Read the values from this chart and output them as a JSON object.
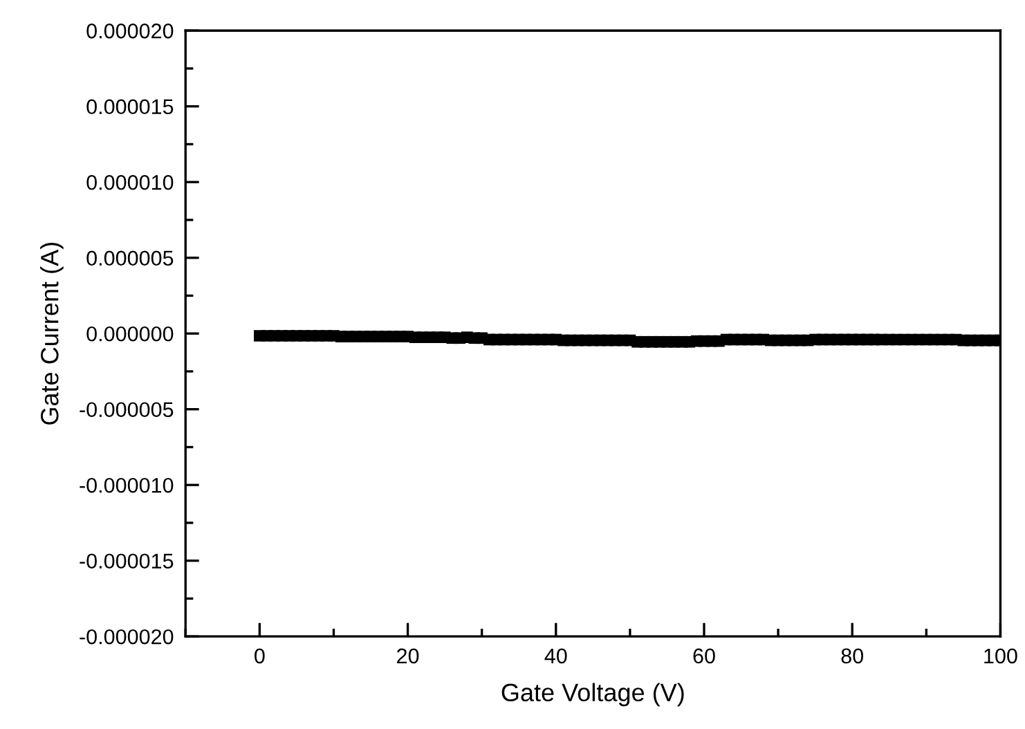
{
  "chart_data": {
    "type": "scatter",
    "xlabel": "Gate Voltage (V)",
    "ylabel": "Gate Current (A)",
    "marker": "square",
    "xlim": [
      -10,
      100
    ],
    "xticks": [
      0,
      20,
      40,
      60,
      80,
      100
    ],
    "ylim": [
      -2e-05,
      2e-05
    ],
    "yticks": [
      {
        "value": -2e-05,
        "label": "-0.000020"
      },
      {
        "value": -1.5e-05,
        "label": "-0.000015"
      },
      {
        "value": -1e-05,
        "label": "-0.000010"
      },
      {
        "value": -5e-06,
        "label": "-0.000005"
      },
      {
        "value": 0,
        "label": "0.000000"
      },
      {
        "value": 5e-06,
        "label": "0.000005"
      },
      {
        "value": 1e-05,
        "label": "0.000010"
      },
      {
        "value": 1.5e-05,
        "label": "0.000015"
      },
      {
        "value": 2e-05,
        "label": "0.000020"
      }
    ],
    "series": [
      {
        "color": "#000000",
        "x": [
          0,
          1,
          2,
          3,
          4,
          5,
          6,
          7,
          8,
          9,
          10,
          11,
          12,
          13,
          14,
          15,
          16,
          17,
          18,
          19,
          20,
          21,
          22,
          23,
          24,
          25,
          26,
          27,
          28,
          29,
          30,
          31,
          32,
          33,
          34,
          35,
          36,
          37,
          38,
          39,
          40,
          41,
          42,
          43,
          44,
          45,
          46,
          47,
          48,
          49,
          50,
          51,
          52,
          53,
          54,
          55,
          56,
          57,
          58,
          59,
          60,
          61,
          62,
          63,
          64,
          65,
          66,
          67,
          68,
          69,
          70,
          71,
          72,
          73,
          74,
          75,
          76,
          77,
          78,
          79,
          80,
          81,
          82,
          83,
          84,
          85,
          86,
          87,
          88,
          89,
          90,
          91,
          92,
          93,
          94,
          95,
          96,
          97,
          98,
          99,
          100
        ],
        "values": [
          -1.5e-07,
          -1.5e-07,
          -1.5e-07,
          -1.5e-07,
          -1.5e-07,
          -1.5e-07,
          -1.5e-07,
          -1.5e-07,
          -1.5e-07,
          -1.5e-07,
          -1.5e-07,
          -2e-07,
          -2e-07,
          -2e-07,
          -2e-07,
          -2e-07,
          -2e-07,
          -2e-07,
          -2e-07,
          -2e-07,
          -2e-07,
          -2.5e-07,
          -2.5e-07,
          -2.5e-07,
          -2.5e-07,
          -2.5e-07,
          -3e-07,
          -3e-07,
          -2.5e-07,
          -3e-07,
          -3e-07,
          -4e-07,
          -4e-07,
          -4e-07,
          -4e-07,
          -4e-07,
          -4e-07,
          -4e-07,
          -4e-07,
          -4e-07,
          -4e-07,
          -4.5e-07,
          -4.5e-07,
          -4.5e-07,
          -4.5e-07,
          -4.5e-07,
          -4.5e-07,
          -4.5e-07,
          -4.5e-07,
          -4.5e-07,
          -4.5e-07,
          -5.5e-07,
          -5.5e-07,
          -5.5e-07,
          -5.5e-07,
          -5.5e-07,
          -5.5e-07,
          -5.5e-07,
          -5.5e-07,
          -5e-07,
          -5e-07,
          -5e-07,
          -5e-07,
          -4e-07,
          -4e-07,
          -4e-07,
          -4e-07,
          -4e-07,
          -4e-07,
          -4.5e-07,
          -4.5e-07,
          -4.5e-07,
          -4.5e-07,
          -4.5e-07,
          -4.5e-07,
          -4e-07,
          -4e-07,
          -4e-07,
          -4e-07,
          -4e-07,
          -4e-07,
          -4e-07,
          -4e-07,
          -4e-07,
          -4e-07,
          -4e-07,
          -4e-07,
          -4e-07,
          -4e-07,
          -4e-07,
          -4e-07,
          -4e-07,
          -4e-07,
          -4e-07,
          -4e-07,
          -4.5e-07,
          -4.5e-07,
          -4.5e-07,
          -4.5e-07,
          -4.5e-07,
          -4.5e-07
        ]
      }
    ]
  }
}
